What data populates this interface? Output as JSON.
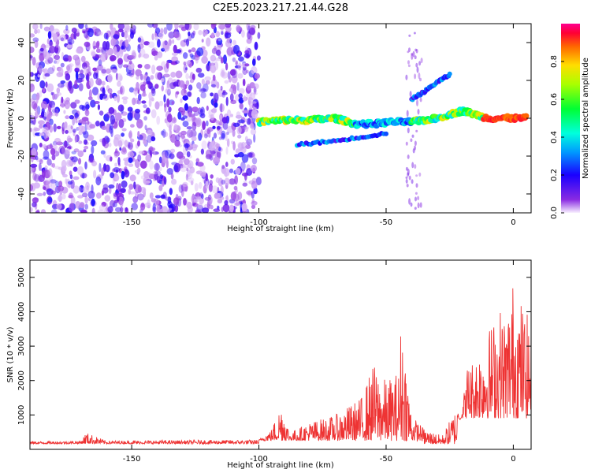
{
  "title": "C2E5.2023.217.21.44.G28",
  "chart_data": [
    {
      "type": "heatmap",
      "title": "",
      "xlabel": "Height of straight line (km)",
      "ylabel": "Frequency (Hz)",
      "xlim": [
        -190,
        7
      ],
      "ylim": [
        -50,
        50
      ],
      "xticks": [
        -150,
        -100,
        -50,
        0
      ],
      "yticks": [
        -40,
        -20,
        0,
        20,
        40
      ],
      "colorbar": {
        "label": "Normalized spectral amplitude",
        "range": [
          0,
          1
        ],
        "ticks": [
          "0.0",
          "0.2",
          "0.4",
          "0.6",
          "0.8"
        ]
      },
      "noise_region_x": [
        -190,
        -100
      ],
      "signal_tracks": [
        {
          "x": [
            -100,
            -90,
            -80,
            -70,
            -62,
            -55,
            -48,
            -40,
            -30,
            -20,
            -10,
            5
          ],
          "y": [
            -2,
            -1,
            -1,
            0,
            -3,
            -3,
            -2,
            -2,
            0,
            4,
            0,
            0
          ]
        },
        {
          "x": [
            -40,
            -35,
            -30,
            -25
          ],
          "y": [
            10,
            14,
            19,
            23
          ]
        },
        {
          "x": [
            -85,
            -78,
            -70,
            -60,
            -50
          ],
          "y": [
            -14,
            -13,
            -12,
            -10,
            -8
          ]
        }
      ]
    },
    {
      "type": "line",
      "title": "",
      "xlabel": "Height of straight line (km)",
      "ylabel": "SNR (10 * v/v)",
      "xlim": [
        -190,
        7
      ],
      "ylim": [
        0,
        5500
      ],
      "xticks": [
        -150,
        -100,
        -50,
        0
      ],
      "yticks": [
        1000,
        2000,
        3000,
        4000,
        5000
      ],
      "color": "#ee3333",
      "envelope": {
        "x": [
          -190,
          -170,
          -168,
          -160,
          -100,
          -95,
          -91,
          -88,
          -85,
          -80,
          -70,
          -60,
          -55,
          -50,
          -45,
          -44,
          -40,
          -35,
          -28,
          -22,
          -21,
          -18,
          -15,
          -10,
          -5,
          -3,
          0,
          5,
          7
        ],
        "y": [
          230,
          250,
          500,
          250,
          280,
          600,
          1400,
          500,
          600,
          800,
          1000,
          1500,
          2500,
          2000,
          2300,
          4000,
          1000,
          600,
          400,
          1300,
          700,
          2500,
          2700,
          3500,
          4200,
          3900,
          5000,
          4000,
          3700
        ]
      }
    }
  ]
}
